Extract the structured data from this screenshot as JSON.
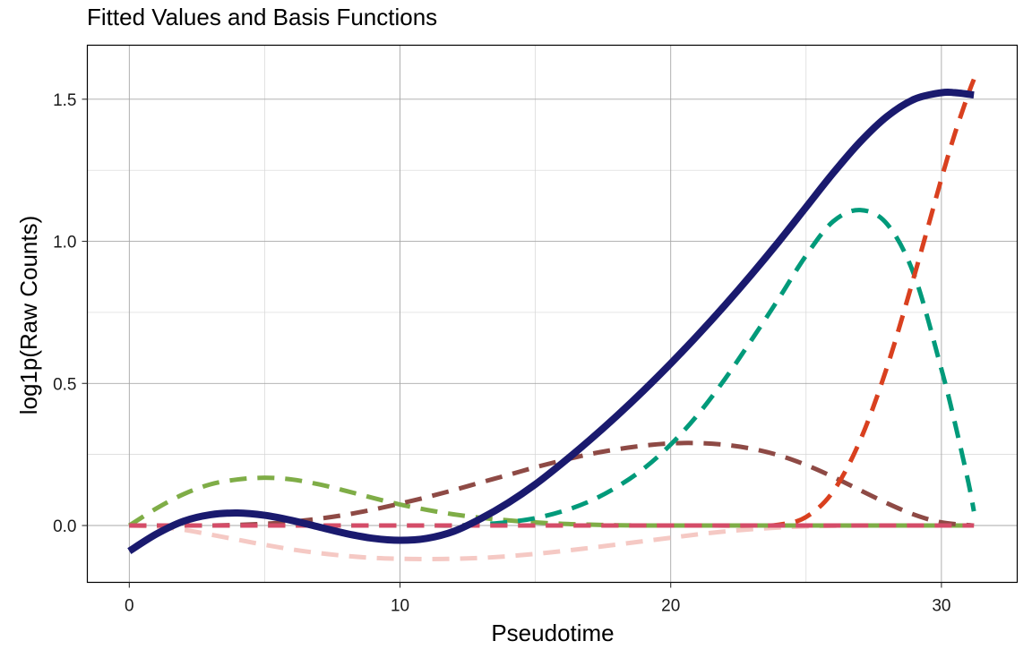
{
  "chart_data": {
    "type": "line",
    "title": "Fitted Values and Basis Functions",
    "xlabel": "Pseudotime",
    "ylabel": "log1p(Raw Counts)",
    "xlim": [
      -1.55,
      32.8
    ],
    "ylim": [
      -0.2,
      1.69
    ],
    "x_ticks": [
      0,
      10,
      20,
      30
    ],
    "x_tick_labels": [
      "0",
      "10",
      "20",
      "30"
    ],
    "y_ticks": [
      0.0,
      0.5,
      1.0,
      1.5
    ],
    "y_tick_labels": [
      "0.0",
      "0.5",
      "1.0",
      "1.5"
    ],
    "x_minor_gridlines": [
      5,
      15,
      25
    ],
    "y_minor_gridlines": [
      0.25,
      0.75,
      1.25
    ],
    "grid": true,
    "legend": "none",
    "series": [
      {
        "color": "#F5C9C4",
        "style": "dashed",
        "x": [
          0,
          1,
          2,
          3,
          4,
          5,
          6,
          7,
          8,
          9,
          10,
          11,
          12,
          13,
          14,
          15,
          16,
          17,
          18,
          19,
          20,
          21,
          22,
          23,
          24,
          25,
          26,
          27,
          28,
          29,
          30,
          31.2
        ],
        "y": [
          0,
          -0.004,
          -0.015,
          -0.032,
          -0.05,
          -0.068,
          -0.084,
          -0.097,
          -0.107,
          -0.114,
          -0.117,
          -0.118,
          -0.117,
          -0.114,
          -0.108,
          -0.1,
          -0.09,
          -0.079,
          -0.067,
          -0.055,
          -0.043,
          -0.031,
          -0.021,
          -0.013,
          -0.007,
          -0.003,
          -0.001,
          0,
          0,
          0,
          0,
          0
        ]
      },
      {
        "color": "#7FAD47",
        "style": "dashed",
        "x": [
          0,
          1,
          2,
          3,
          4,
          5,
          6,
          7,
          8,
          9,
          10,
          11,
          12,
          13,
          14,
          15,
          16,
          17,
          18,
          19,
          20,
          21,
          22,
          23,
          24,
          25,
          26,
          27,
          28,
          29,
          30,
          31.2
        ],
        "y": [
          0,
          0.06,
          0.11,
          0.145,
          0.162,
          0.168,
          0.162,
          0.145,
          0.122,
          0.097,
          0.074,
          0.055,
          0.039,
          0.027,
          0.018,
          0.011,
          0.006,
          0.003,
          0.001,
          0,
          0,
          0,
          0,
          0,
          0,
          0,
          0,
          0,
          0,
          0,
          0,
          0
        ]
      },
      {
        "color": "#8E4A45",
        "style": "dashed",
        "x": [
          0,
          1,
          2,
          3,
          4,
          5,
          6,
          7,
          8,
          9,
          10,
          11,
          12,
          13,
          14,
          15,
          16,
          17,
          18,
          19,
          20,
          21,
          22,
          23,
          24,
          25,
          26,
          27,
          28,
          29,
          30,
          31.2
        ],
        "y": [
          0,
          0,
          0,
          0,
          0.002,
          0.006,
          0.013,
          0.024,
          0.038,
          0.056,
          0.077,
          0.1,
          0.125,
          0.152,
          0.178,
          0.205,
          0.229,
          0.251,
          0.268,
          0.281,
          0.289,
          0.29,
          0.284,
          0.27,
          0.247,
          0.213,
          0.171,
          0.124,
          0.078,
          0.038,
          0.011,
          0
        ]
      },
      {
        "color": "#009A7A",
        "style": "dashed",
        "x": [
          0,
          2,
          4,
          6,
          8,
          10,
          11,
          12,
          13,
          14,
          15,
          16,
          17,
          18,
          19,
          20,
          21,
          22,
          23,
          24,
          25,
          26,
          27,
          28,
          29,
          30,
          30.5,
          31,
          31.2
        ],
        "y": [
          0,
          0,
          0,
          0,
          0,
          0,
          0,
          0,
          0.004,
          0.012,
          0.026,
          0.05,
          0.085,
          0.135,
          0.2,
          0.285,
          0.39,
          0.515,
          0.655,
          0.8,
          0.95,
          1.07,
          1.11,
          1.06,
          0.88,
          0.55,
          0.36,
          0.15,
          0.05
        ]
      },
      {
        "color": "#D9401F",
        "style": "dashed",
        "x": [
          0,
          5,
          10,
          15,
          20,
          23,
          24,
          25,
          26,
          27,
          28,
          29,
          30,
          30.5,
          31,
          31.2
        ],
        "y": [
          0,
          0,
          0,
          0,
          0,
          0,
          0.003,
          0.03,
          0.12,
          0.3,
          0.56,
          0.88,
          1.22,
          1.38,
          1.52,
          1.57
        ]
      },
      {
        "color": "#D44C68",
        "style": "dashed",
        "x": [
          0,
          5,
          10,
          15,
          20,
          25,
          31.2
        ],
        "y": [
          0,
          0,
          0,
          0,
          0,
          0,
          0
        ]
      },
      {
        "color": "#1A1A6E",
        "style": "solid",
        "x": [
          0,
          1,
          2,
          3,
          4,
          5,
          6,
          7,
          8,
          9,
          10,
          11,
          12,
          13,
          14,
          15,
          16,
          17,
          18,
          19,
          20,
          21,
          22,
          23,
          24,
          25,
          26,
          27,
          28,
          29,
          30,
          30.5,
          31.2
        ],
        "y": [
          -0.09,
          -0.03,
          0.015,
          0.038,
          0.044,
          0.036,
          0.018,
          -0.005,
          -0.028,
          -0.045,
          -0.052,
          -0.045,
          -0.02,
          0.025,
          0.08,
          0.145,
          0.22,
          0.3,
          0.385,
          0.475,
          0.57,
          0.67,
          0.775,
          0.885,
          1.0,
          1.12,
          1.24,
          1.35,
          1.44,
          1.5,
          1.523,
          1.523,
          1.515
        ]
      }
    ]
  }
}
